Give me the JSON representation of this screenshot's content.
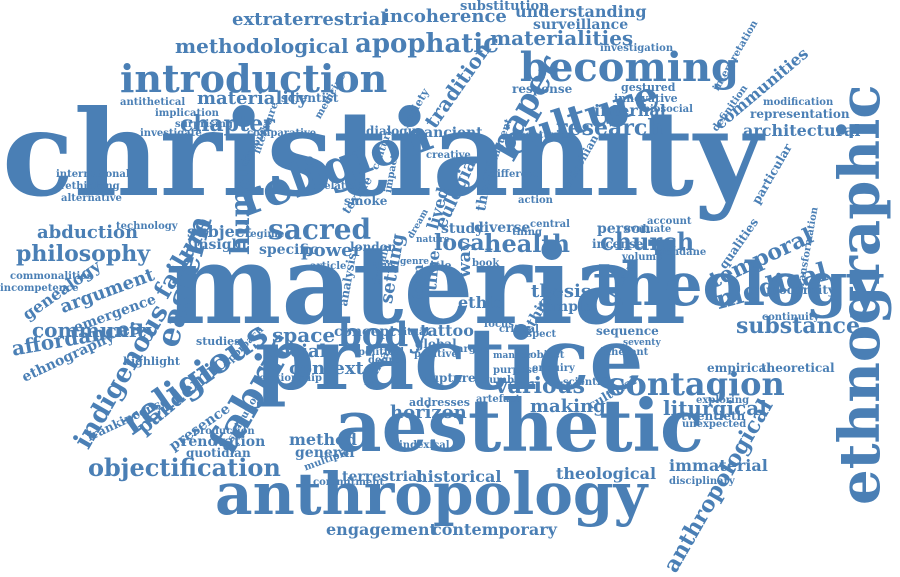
{
  "word_cloud": {
    "color": "#4a7fb5",
    "words": [
      "christianity",
      "material",
      "practice",
      "aesthetic",
      "anthropology",
      "ethnographic",
      "theology",
      "religion",
      "becoming",
      "introduction",
      "culture",
      "paper",
      "contagion",
      "apophatic",
      "materialities",
      "methodological",
      "extraterrestrial",
      "incoherence",
      "understanding",
      "substitution",
      "surveillance",
      "investigation",
      "objectification",
      "fabric",
      "religious",
      "indigenous",
      "eastern",
      "philosophy",
      "community",
      "abduction",
      "sacred",
      "body",
      "human",
      "chapter",
      "materiality",
      "research",
      "tradition",
      "church",
      "health",
      "local",
      "medical",
      "temporal",
      "substance",
      "liturgical",
      "various",
      "horizon",
      "making",
      "historical",
      "terrestrial",
      "contemporary",
      "engagement",
      "theological",
      "immaterial",
      "disciplinary",
      "anthropological",
      "communities",
      "representation",
      "architectural",
      "modification",
      "interpretation",
      "definition",
      "gestured",
      "innovative",
      "biosocial",
      "response",
      "internal",
      "centuries",
      "ancient",
      "dialogue",
      "society",
      "comparative",
      "scientist",
      "medicine",
      "implication",
      "surprising",
      "antithetical",
      "investigate",
      "international",
      "rethinking",
      "alternative",
      "technology",
      "genealogy",
      "commonalities",
      "incompetence",
      "argument",
      "emergence",
      "affordances",
      "ethnography",
      "failure",
      "pandemic",
      "frankincense",
      "presence",
      "production",
      "renovation",
      "quotidian",
      "highlight",
      "studies",
      "approach",
      "relationship",
      "distribution",
      "space",
      "social",
      "context",
      "concept",
      "tattoo",
      "ritual",
      "global",
      "positive",
      "rupture",
      "addresses",
      "artefact",
      "indexical",
      "general",
      "method",
      "multiple",
      "commitment",
      "subject",
      "insight",
      "specific",
      "power",
      "regime",
      "london",
      "isle",
      "study",
      "diverse",
      "lived",
      "eulogia",
      "ethic",
      "thesis",
      "temple",
      "ethical",
      "sequence",
      "critical",
      "argue",
      "person",
      "evaluate",
      "account",
      "mundane",
      "incense",
      "qualities",
      "transformation",
      "modernity",
      "continuity",
      "empirical",
      "theoretical",
      "exploring",
      "twentieth",
      "unexpected",
      "scientific",
      "inherent",
      "object",
      "enquiry",
      "cultural",
      "britain",
      "volume",
      "aspect",
      "central",
      "thing",
      "focus",
      "seventy",
      "particular",
      "antiochian",
      "action",
      "different",
      "impact",
      "discourse",
      "literature",
      "smoke",
      "textile",
      "relation",
      "creative",
      "setting",
      "theory",
      "time",
      "way",
      "form",
      "book",
      "analysis",
      "domain",
      "article",
      "primary",
      "political",
      "degree",
      "purpose",
      "number",
      "unguent",
      "century",
      "manner",
      "nature",
      "dream",
      "genre",
      "thus"
    ]
  }
}
